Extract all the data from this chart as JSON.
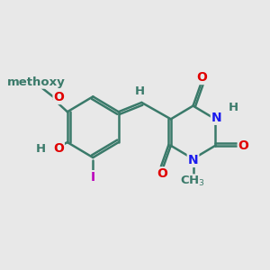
{
  "bg_color": "#e8e8e8",
  "bond_color": "#3a7a6a",
  "bond_width": 1.8,
  "atom_colors": {
    "O": "#e00000",
    "N": "#1a1aee",
    "H": "#3a7a6a",
    "I": "#bb00bb",
    "C": "#3a7a6a"
  },
  "font_size": 10,
  "fig_size": [
    3.0,
    3.0
  ],
  "dpi": 100
}
